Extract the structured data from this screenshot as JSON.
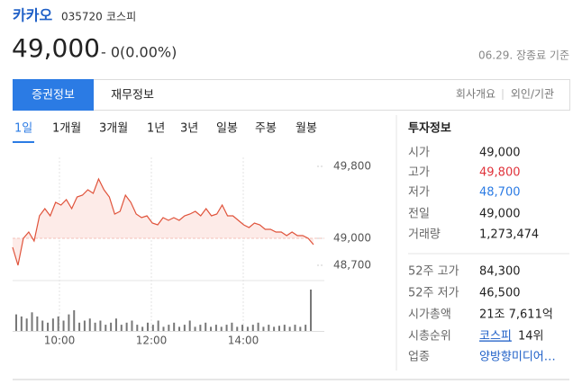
{
  "header": {
    "name": "카카오",
    "code": "035720",
    "market": "코스피",
    "price": "49,000",
    "change": "- 0(0.00%)",
    "as_of": "06.29. 장종료 기준"
  },
  "tabs": [
    "증권정보",
    "재무정보"
  ],
  "links": [
    "회사개요",
    "외인/기관"
  ],
  "periods": [
    "1일",
    "1개월",
    "3개월",
    "1년",
    "3년",
    "일봉",
    "주봉",
    "월봉"
  ],
  "chart_data": {
    "type": "line",
    "color": "#e0533b",
    "fill": "#fdebe8",
    "ylim": [
      48550,
      49900
    ],
    "yticks": [
      {
        "value": 49800,
        "label": "49,800"
      },
      {
        "value": 49000,
        "label": "49,000"
      },
      {
        "value": 48700,
        "label": "48,700"
      }
    ],
    "x_labels": [
      "10:00",
      "12:00",
      "14:00"
    ],
    "values": [
      48900,
      48700,
      49000,
      49070,
      48970,
      49250,
      49330,
      49250,
      49400,
      49370,
      49430,
      49330,
      49460,
      49480,
      49540,
      49500,
      49660,
      49540,
      49460,
      49270,
      49300,
      49480,
      49400,
      49270,
      49230,
      49250,
      49170,
      49150,
      49230,
      49200,
      49230,
      49200,
      49250,
      49270,
      49300,
      49250,
      49330,
      49250,
      49270,
      49370,
      49250,
      49250,
      49200,
      49150,
      49120,
      49170,
      49150,
      49100,
      49100,
      49070,
      49070,
      49030,
      49070,
      49030,
      49030,
      49000,
      48930
    ],
    "volume_color": "#777777",
    "volume": [
      16000,
      14000,
      12000,
      18000,
      14000,
      10000,
      8000,
      12000,
      14000,
      10000,
      16000,
      20000,
      8000,
      10000,
      12000,
      8000,
      10000,
      6000,
      8000,
      12000,
      6000,
      8000,
      10000,
      6000,
      4000,
      8000,
      6000,
      10000,
      4000,
      6000,
      8000,
      4000,
      6000,
      10000,
      4000,
      6000,
      8000,
      4000,
      6000,
      4000,
      6000,
      8000,
      4000,
      6000,
      4000,
      6000,
      8000,
      4000,
      6000,
      4000,
      5000,
      6000,
      4000,
      6000,
      4000,
      6000,
      40000
    ]
  },
  "info": {
    "title": "투자정보",
    "rows": [
      [
        "시가",
        "49,000"
      ],
      [
        "고가",
        "49,800"
      ],
      [
        "저가",
        "48,700"
      ],
      [
        "전일",
        "49,000"
      ],
      [
        "거래량",
        "1,273,474"
      ],
      [
        "52주 고가",
        "84,300"
      ],
      [
        "52주 저가",
        "46,500"
      ],
      [
        "시가총액",
        "21조 7,611억"
      ],
      [
        "시총순위",
        "코스피",
        "14위"
      ],
      [
        "업종",
        "양방향미디어…"
      ]
    ]
  }
}
